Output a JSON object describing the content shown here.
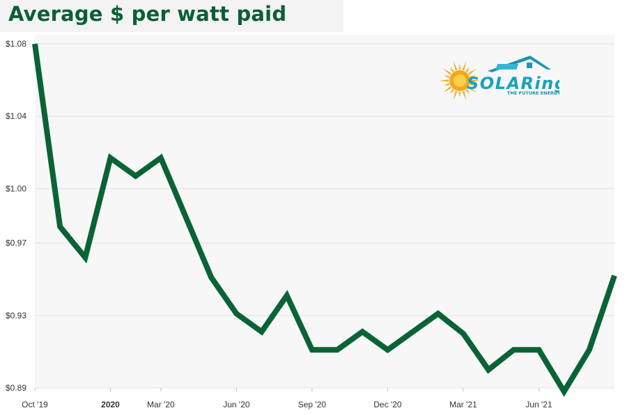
{
  "chart_data": {
    "type": "line",
    "title": "Average $ per watt paid",
    "xlabel": "",
    "ylabel": "",
    "x": [
      "2019-10",
      "2019-11",
      "2019-12",
      "2020-01",
      "2020-02",
      "2020-03",
      "2020-04",
      "2020-05",
      "2020-06",
      "2020-07",
      "2020-08",
      "2020-09",
      "2020-10",
      "2020-11",
      "2020-12",
      "2021-01",
      "2021-02",
      "2021-03",
      "2021-04",
      "2021-05",
      "2021-06",
      "2021-07",
      "2021-08",
      "2021-09"
    ],
    "series": [
      {
        "values": [
          1.08,
          0.979,
          0.962,
          1.017,
          1.007,
          1.017,
          0.984,
          0.951,
          0.931,
          0.921,
          0.941,
          0.911,
          0.911,
          0.921,
          0.911,
          0.921,
          0.931,
          0.92,
          0.9,
          0.911,
          0.911,
          0.888,
          0.911,
          0.952
        ]
      }
    ],
    "ylim": [
      0.89,
      1.08
    ],
    "y_ticks": [
      {
        "value": 1.08,
        "label": "$1.08"
      },
      {
        "value": 1.04,
        "label": "$1.04"
      },
      {
        "value": 1.0,
        "label": "$1.00"
      },
      {
        "value": 0.97,
        "label": "$0.97"
      },
      {
        "value": 0.93,
        "label": "$0.93"
      },
      {
        "value": 0.89,
        "label": "$0.89"
      }
    ],
    "x_ticks": [
      {
        "index": 0,
        "label": "Oct '19",
        "bold": false
      },
      {
        "index": 3,
        "label": "2020",
        "bold": true
      },
      {
        "index": 5,
        "label": "Mar '20",
        "bold": false
      },
      {
        "index": 8,
        "label": "Jun '20",
        "bold": false
      },
      {
        "index": 11,
        "label": "Sep '20",
        "bold": false
      },
      {
        "index": 14,
        "label": "Dec '20",
        "bold": false
      },
      {
        "index": 17,
        "label": "Mar '21",
        "bold": false
      },
      {
        "index": 20,
        "label": "Jun '21",
        "bold": false
      }
    ],
    "grid": true,
    "legend": "none",
    "line_color": "#0a6334",
    "grid_color": "#e2e2e2",
    "plot_background": "#f7f7f7"
  },
  "logo": {
    "text": "SOLARing",
    "tagline": "THE FUTURE ENERGY",
    "text_color": "#18a2be",
    "sun_color": "#f2a81d"
  }
}
